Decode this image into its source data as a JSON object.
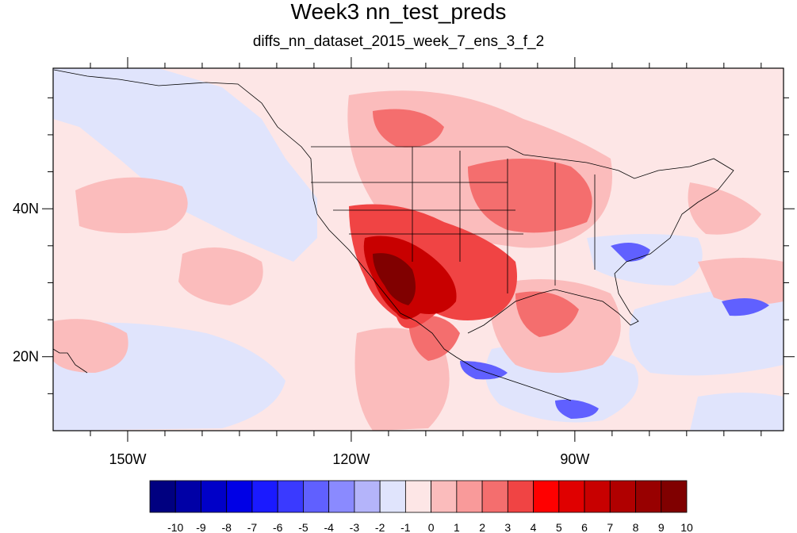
{
  "title": "Week3 nn_test_preds",
  "subtitle": "diffs_nn_dataset_2015_week_7_ens_3_f_2",
  "map": {
    "lon_range": [
      -160,
      -62
    ],
    "lat_range": [
      10,
      59
    ],
    "x_ticks": [
      {
        "lon": -150,
        "label": "150W"
      },
      {
        "lon": -120,
        "label": "120W"
      },
      {
        "lon": -90,
        "label": "90W"
      }
    ],
    "y_ticks": [
      {
        "lat": 40,
        "label": "40N"
      },
      {
        "lat": 20,
        "label": "20N"
      }
    ],
    "background_color": "#fde6e6"
  },
  "colorbar": {
    "labels": [
      "-10",
      "-9",
      "-8",
      "-7",
      "-6",
      "-5",
      "-4",
      "-3",
      "-2",
      "-1",
      "0",
      "1",
      "2",
      "3",
      "4",
      "5",
      "6",
      "7",
      "8",
      "9",
      "10"
    ],
    "colors": [
      "#000080",
      "#0000a6",
      "#0000c8",
      "#0000e6",
      "#1a1aff",
      "#3a3aff",
      "#6060ff",
      "#8a8aff",
      "#b4b4fa",
      "#e0e4fc",
      "#fde6e6",
      "#fbbcbc",
      "#f99a9a",
      "#f46e6e",
      "#f04444",
      "#ff0000",
      "#e00000",
      "#c80000",
      "#b00000",
      "#980000",
      "#800000"
    ]
  }
}
